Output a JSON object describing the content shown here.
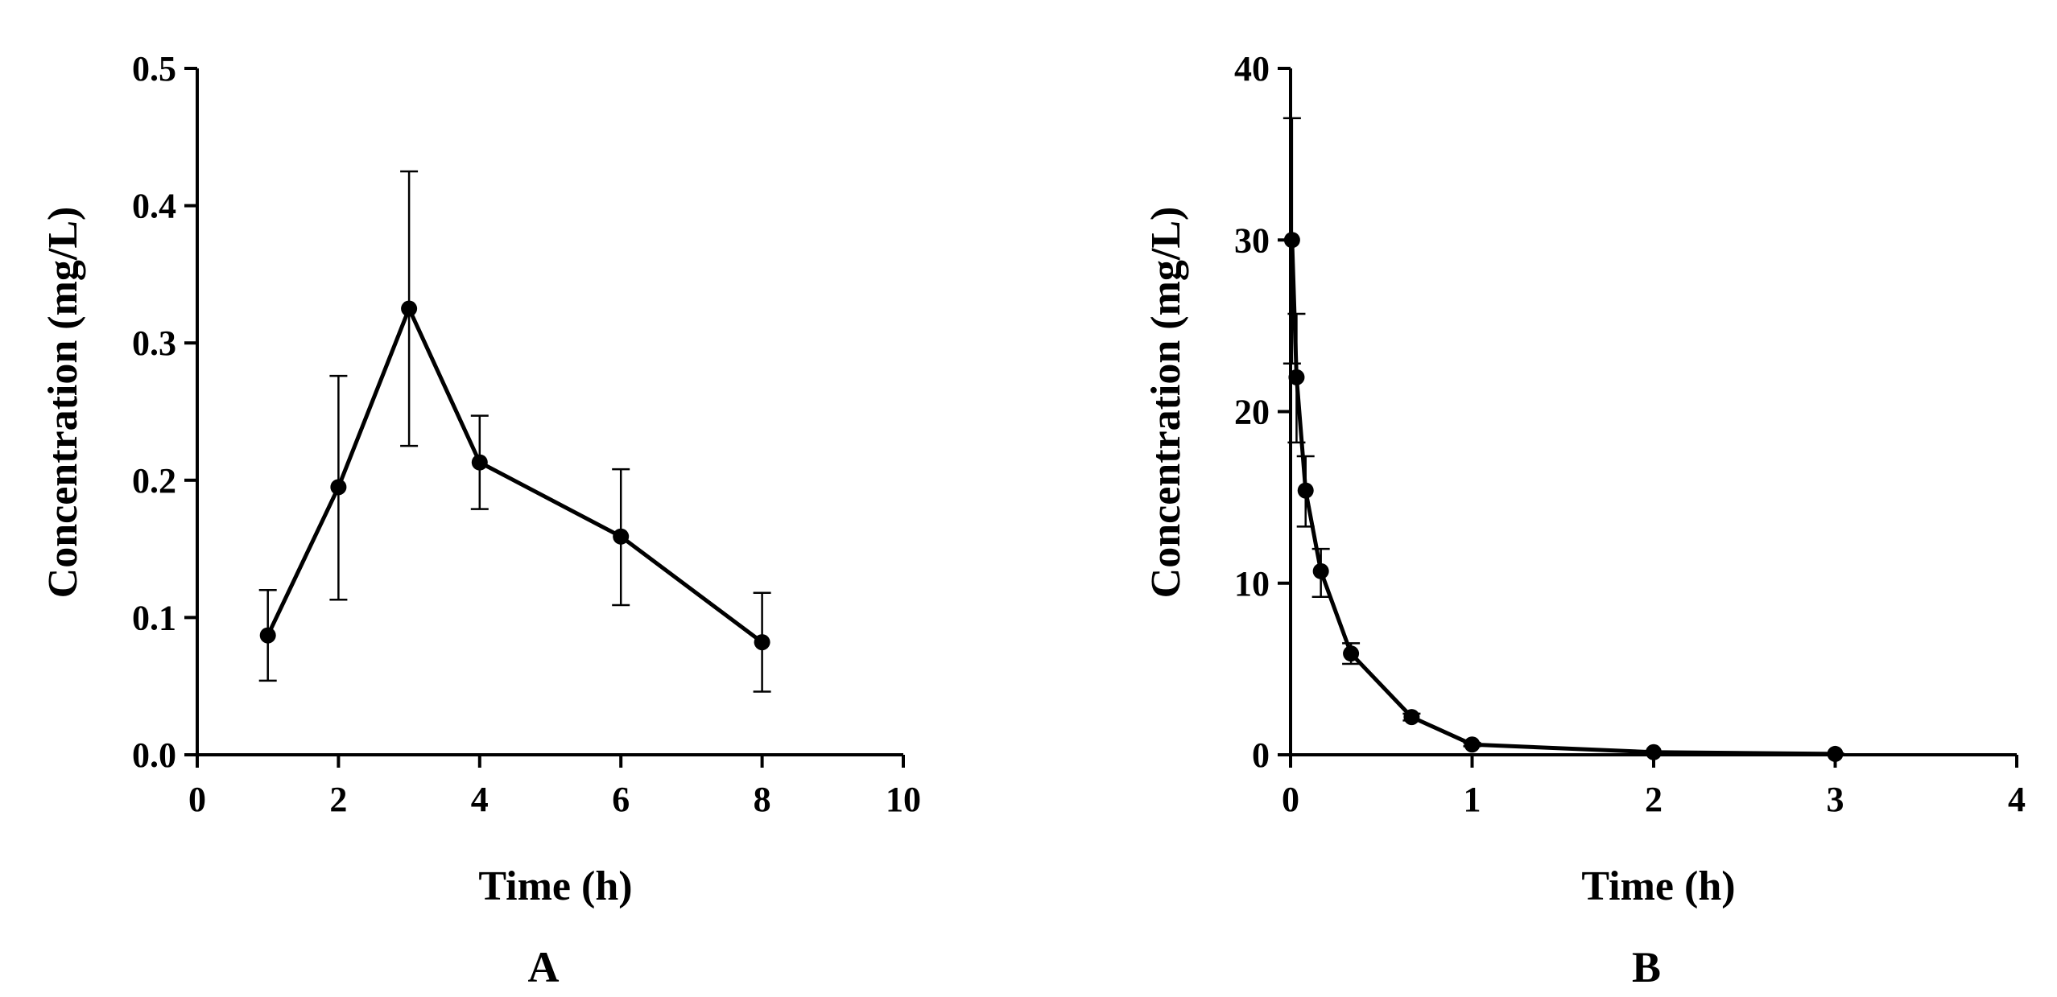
{
  "chart_data": [
    {
      "type": "line",
      "panel_label": "A",
      "title": "",
      "xlabel": "Time (h)",
      "ylabel": "Concentration (mg/L)",
      "xlim": [
        0,
        10
      ],
      "ylim": [
        0,
        0.5
      ],
      "x_ticks": [
        0,
        2,
        4,
        6,
        8,
        10
      ],
      "x_tick_labels": [
        "0",
        "2",
        "4",
        "6",
        "8",
        "10"
      ],
      "y_ticks": [
        0,
        0.1,
        0.2,
        0.3,
        0.4,
        0.5
      ],
      "y_tick_labels": [
        "0.0",
        "0.1",
        "0.2",
        "0.3",
        "0.4",
        "0.5"
      ],
      "grid": false,
      "series": [
        {
          "name": "Concentration",
          "x": [
            1,
            2,
            3,
            4,
            6,
            8
          ],
          "y": [
            0.087,
            0.195,
            0.325,
            0.213,
            0.159,
            0.082
          ],
          "error_low": [
            0.054,
            0.113,
            0.225,
            0.179,
            0.109,
            0.046
          ],
          "error_high": [
            0.12,
            0.276,
            0.425,
            0.247,
            0.208,
            0.118
          ]
        }
      ]
    },
    {
      "type": "line",
      "panel_label": "B",
      "title": "",
      "xlabel": "Time (h)",
      "ylabel": "Concentration (mg/L)",
      "xlim": [
        0,
        4
      ],
      "ylim": [
        0,
        40
      ],
      "x_ticks": [
        0,
        1,
        2,
        3,
        4
      ],
      "x_tick_labels": [
        "0",
        "1",
        "2",
        "3",
        "4"
      ],
      "y_ticks": [
        0,
        10,
        20,
        30,
        40
      ],
      "y_tick_labels": [
        "0",
        "10",
        "20",
        "30",
        "40"
      ],
      "grid": false,
      "series": [
        {
          "name": "Concentration",
          "x": [
            0.0083,
            0.033,
            0.083,
            0.167,
            0.333,
            0.667,
            1,
            2,
            3
          ],
          "y": [
            30.0,
            22.0,
            15.4,
            10.7,
            5.9,
            2.2,
            0.6,
            0.15,
            0.05
          ],
          "error_low": [
            22.8,
            18.2,
            13.3,
            9.2,
            5.3,
            2.0,
            0.5,
            0.1,
            0.02
          ],
          "error_high": [
            37.1,
            25.7,
            17.4,
            12.0,
            6.5,
            2.4,
            0.7,
            0.2,
            0.08
          ]
        }
      ]
    }
  ]
}
